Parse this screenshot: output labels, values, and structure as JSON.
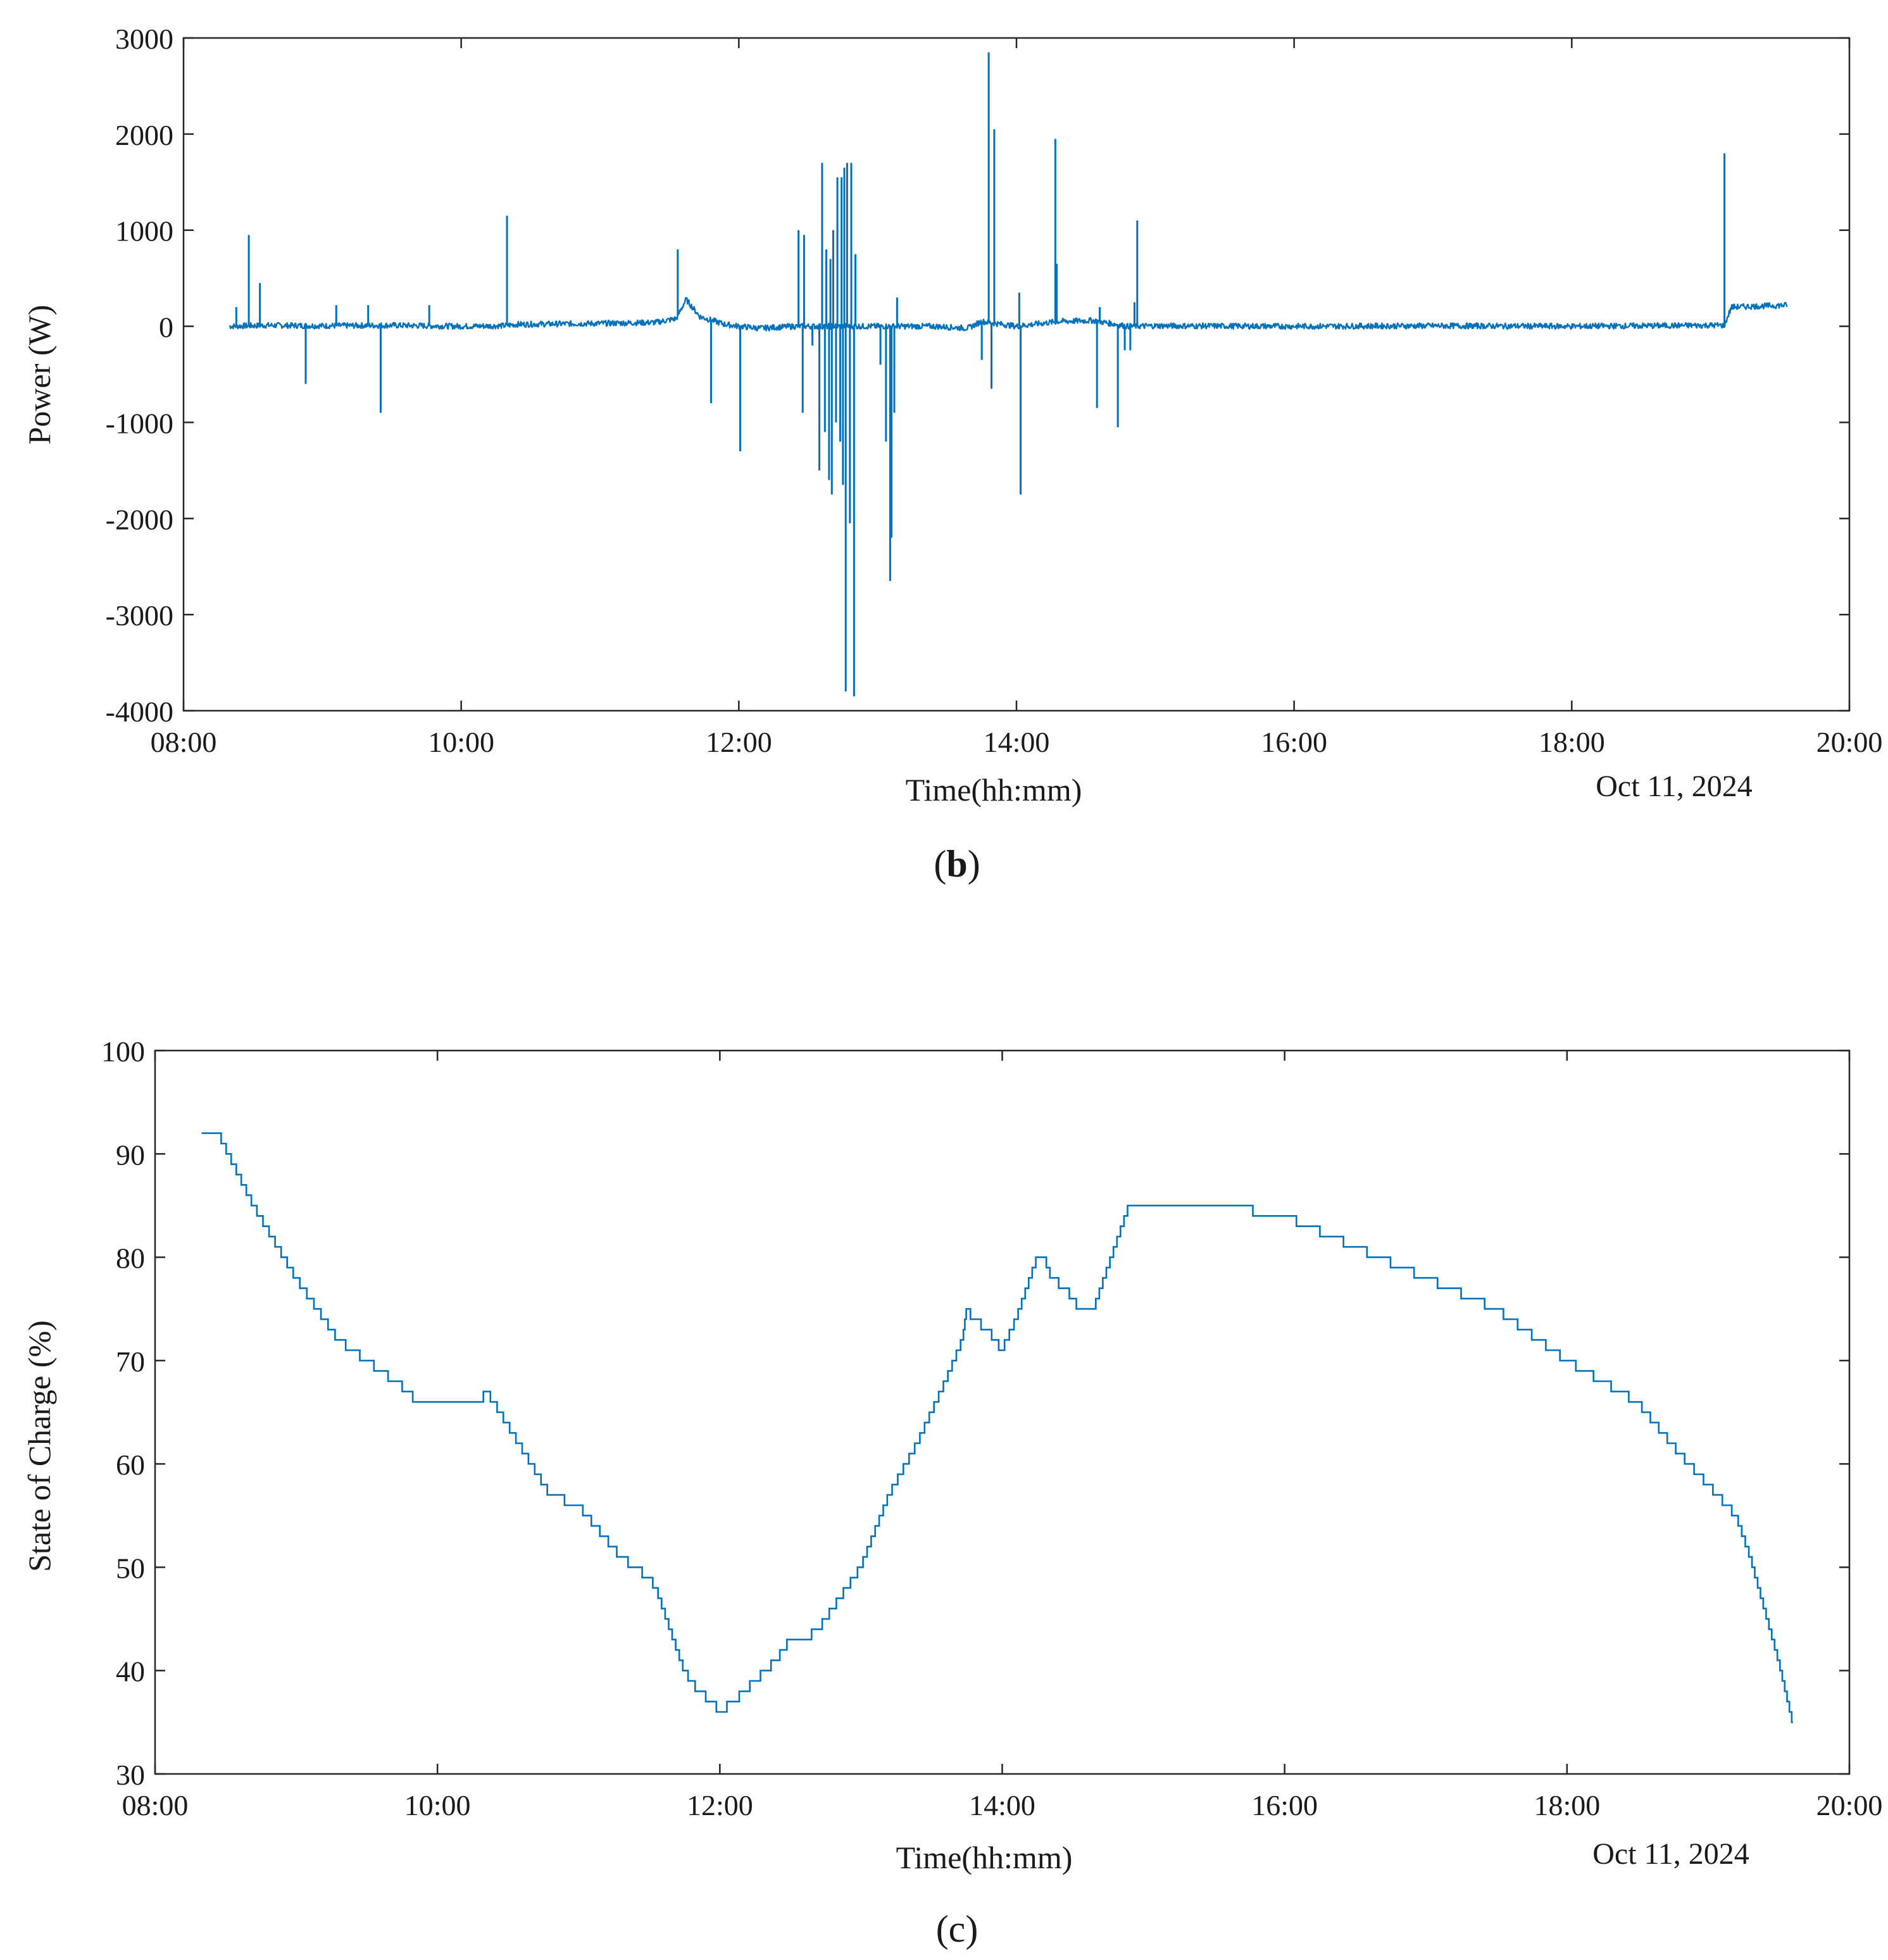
{
  "colors": {
    "series": "#0072BD",
    "axis": "#262626"
  },
  "chart_data": [
    {
      "type": "line",
      "panel_label": "(b)",
      "panel_label_bold": "b",
      "title": "",
      "xlabel": "Time(hh:mm)",
      "ylabel": "Power (W)",
      "date_note": "Oct 11, 2024",
      "xlim": [
        8,
        20
      ],
      "ylim": [
        -4000,
        3000
      ],
      "xticks": [
        8,
        10,
        12,
        14,
        16,
        18,
        20
      ],
      "xtick_labels": [
        "08:00",
        "10:00",
        "12:00",
        "14:00",
        "16:00",
        "18:00",
        "20:00"
      ],
      "yticks": [
        -4000,
        -3000,
        -2000,
        -1000,
        0,
        1000,
        2000,
        3000
      ],
      "ytick_labels": [
        "-4000",
        "-3000",
        "-2000",
        "-1000",
        "0",
        "1000",
        "2000",
        "3000"
      ],
      "series": [
        {
          "name": "Power",
          "baseline": [
            [
              8.33,
              0
            ],
            [
              8.6,
              10
            ],
            [
              9.0,
              5
            ],
            [
              9.5,
              10
            ],
            [
              10.0,
              0
            ],
            [
              10.3,
              5
            ],
            [
              10.4,
              20
            ],
            [
              11.0,
              30
            ],
            [
              11.4,
              40
            ],
            [
              11.55,
              80
            ],
            [
              11.62,
              280
            ],
            [
              11.72,
              100
            ],
            [
              11.9,
              20
            ],
            [
              12.0,
              0
            ],
            [
              12.15,
              -20
            ],
            [
              12.4,
              0
            ],
            [
              13.0,
              0
            ],
            [
              13.4,
              0
            ],
            [
              13.65,
              -20
            ],
            [
              13.75,
              50
            ],
            [
              14.0,
              0
            ],
            [
              14.3,
              50
            ],
            [
              14.55,
              60
            ],
            [
              14.8,
              0
            ],
            [
              15.0,
              5
            ],
            [
              16.0,
              0
            ],
            [
              17.0,
              5
            ],
            [
              18.0,
              0
            ],
            [
              19.0,
              10
            ],
            [
              19.1,
              10
            ],
            [
              19.15,
              200
            ],
            [
              19.55,
              220
            ]
          ],
          "spikes": [
            [
              8.38,
              200
            ],
            [
              8.47,
              950
            ],
            [
              8.55,
              450
            ],
            [
              8.88,
              -600
            ],
            [
              9.1,
              220
            ],
            [
              9.33,
              220
            ],
            [
              9.42,
              -900
            ],
            [
              9.77,
              220
            ],
            [
              10.33,
              1150
            ],
            [
              11.56,
              800
            ],
            [
              11.8,
              -800
            ],
            [
              12.01,
              -1300
            ],
            [
              12.43,
              1000
            ],
            [
              12.46,
              -900
            ],
            [
              12.47,
              950
            ],
            [
              12.53,
              -200
            ],
            [
              12.58,
              -1500
            ],
            [
              12.6,
              1700
            ],
            [
              12.62,
              -1100
            ],
            [
              12.63,
              800
            ],
            [
              12.65,
              -1600
            ],
            [
              12.66,
              700
            ],
            [
              12.67,
              -1750
            ],
            [
              12.68,
              1000
            ],
            [
              12.7,
              -1000
            ],
            [
              12.71,
              1550
            ],
            [
              12.73,
              -1200
            ],
            [
              12.74,
              1550
            ],
            [
              12.75,
              -1650
            ],
            [
              12.76,
              1650
            ],
            [
              12.77,
              -3800
            ],
            [
              12.78,
              1700
            ],
            [
              12.8,
              -2050
            ],
            [
              12.81,
              1700
            ],
            [
              12.83,
              -3850
            ],
            [
              12.84,
              750
            ],
            [
              13.02,
              -400
            ],
            [
              13.06,
              -1200
            ],
            [
              13.09,
              -2650
            ],
            [
              13.1,
              -2200
            ],
            [
              13.12,
              -900
            ],
            [
              13.14,
              300
            ],
            [
              13.75,
              -350
            ],
            [
              13.8,
              2850
            ],
            [
              13.82,
              -650
            ],
            [
              13.84,
              2050
            ],
            [
              14.02,
              350
            ],
            [
              14.03,
              -1750
            ],
            [
              14.28,
              1950
            ],
            [
              14.29,
              650
            ],
            [
              14.58,
              -850
            ],
            [
              14.6,
              200
            ],
            [
              14.73,
              -1050
            ],
            [
              14.78,
              -250
            ],
            [
              14.82,
              -250
            ],
            [
              14.85,
              250
            ],
            [
              14.87,
              1100
            ],
            [
              19.1,
              1800
            ]
          ]
        }
      ]
    },
    {
      "type": "line",
      "panel_label": "(c)",
      "title": "",
      "xlabel": "Time(hh:mm)",
      "ylabel": "State of Charge (%)",
      "date_note": "Oct 11, 2024",
      "xlim": [
        8,
        20
      ],
      "ylim": [
        30,
        100
      ],
      "xticks": [
        8,
        10,
        12,
        14,
        16,
        18,
        20
      ],
      "xtick_labels": [
        "08:00",
        "10:00",
        "12:00",
        "14:00",
        "16:00",
        "18:00",
        "20:00"
      ],
      "yticks": [
        30,
        40,
        50,
        60,
        70,
        80,
        90,
        100
      ],
      "ytick_labels": [
        "30",
        "40",
        "50",
        "60",
        "70",
        "80",
        "90",
        "100"
      ],
      "series": [
        {
          "name": "SoC",
          "points": [
            [
              8.33,
              92
            ],
            [
              8.45,
              92
            ],
            [
              8.7,
              85
            ],
            [
              9.0,
              78
            ],
            [
              9.3,
              72
            ],
            [
              9.5,
              70
            ],
            [
              9.8,
              67
            ],
            [
              9.85,
              66
            ],
            [
              10.3,
              66
            ],
            [
              10.35,
              67
            ],
            [
              10.4,
              66
            ],
            [
              10.8,
              57
            ],
            [
              11.0,
              56
            ],
            [
              11.3,
              51
            ],
            [
              11.5,
              49
            ],
            [
              11.55,
              48
            ],
            [
              11.75,
              40
            ],
            [
              11.85,
              38
            ],
            [
              11.95,
              37
            ],
            [
              12.0,
              36
            ],
            [
              12.1,
              37
            ],
            [
              12.4,
              41
            ],
            [
              12.5,
              43
            ],
            [
              12.6,
              43
            ],
            [
              12.7,
              44
            ],
            [
              13.0,
              50
            ],
            [
              13.2,
              57
            ],
            [
              13.4,
              62
            ],
            [
              13.6,
              68
            ],
            [
              13.72,
              72
            ],
            [
              13.75,
              75
            ],
            [
              13.8,
              74
            ],
            [
              13.9,
              73
            ],
            [
              14.0,
              71
            ],
            [
              14.1,
              74
            ],
            [
              14.2,
              78
            ],
            [
              14.25,
              80
            ],
            [
              14.3,
              80
            ],
            [
              14.35,
              78
            ],
            [
              14.45,
              77
            ],
            [
              14.55,
              75
            ],
            [
              14.65,
              75
            ],
            [
              14.7,
              77
            ],
            [
              14.8,
              81
            ],
            [
              14.9,
              85
            ],
            [
              15.0,
              85
            ],
            [
              15.75,
              85
            ],
            [
              15.8,
              84
            ],
            [
              16.0,
              84
            ],
            [
              16.5,
              81
            ],
            [
              17.0,
              78
            ],
            [
              17.5,
              75
            ],
            [
              18.0,
              70
            ],
            [
              18.5,
              66
            ],
            [
              18.8,
              61
            ],
            [
              19.0,
              58
            ],
            [
              19.2,
              55
            ],
            [
              19.3,
              51
            ],
            [
              19.5,
              41
            ],
            [
              19.6,
              35
            ]
          ]
        }
      ]
    }
  ]
}
